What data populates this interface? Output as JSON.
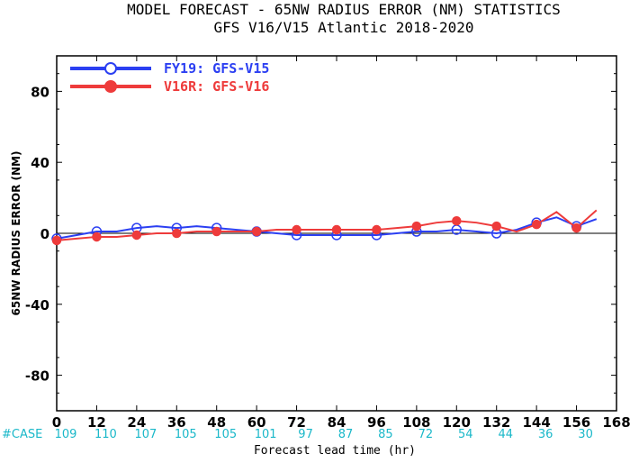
{
  "chart_data": {
    "type": "line",
    "title": "MODEL FORECAST - 65NW RADIUS ERROR (NM) STATISTICS",
    "subtitle": "GFS V16/V15 Atlantic 2018-2020",
    "xlabel": "Forecast lead time (hr)",
    "ylabel": "65NW RADIUS ERROR (NM)",
    "xlim": [
      0,
      168
    ],
    "ylim": [
      -100,
      100
    ],
    "x_ticks": [
      0,
      12,
      24,
      36,
      48,
      60,
      72,
      84,
      96,
      108,
      120,
      132,
      144,
      156,
      168
    ],
    "y_ticks": [
      -80,
      -40,
      0,
      40,
      80
    ],
    "grid": false,
    "legend_position": "top-left",
    "zero_line": true,
    "series": [
      {
        "name": "FY19: GFS-V15",
        "color": "#2b3ff2",
        "marker": "open-circle",
        "x": [
          0,
          6,
          12,
          18,
          24,
          30,
          36,
          42,
          48,
          54,
          60,
          66,
          72,
          78,
          84,
          90,
          96,
          102,
          108,
          114,
          120,
          126,
          132,
          138,
          144,
          150,
          156,
          162
        ],
        "y": [
          -3,
          -1,
          1,
          1,
          3,
          4,
          3,
          4,
          3,
          2,
          1,
          0,
          -1,
          -1,
          -1,
          -1,
          -1,
          0,
          1,
          1,
          2,
          1,
          0,
          2,
          6,
          9,
          4,
          8
        ],
        "marker_x": [
          0,
          12,
          24,
          36,
          48,
          60,
          72,
          84,
          96,
          108,
          120,
          132,
          144,
          156
        ]
      },
      {
        "name": "V16R: GFS-V16",
        "color": "#ee3b3b",
        "marker": "filled-circle",
        "x": [
          0,
          6,
          12,
          18,
          24,
          30,
          36,
          42,
          48,
          54,
          60,
          66,
          72,
          78,
          84,
          90,
          96,
          102,
          108,
          114,
          120,
          126,
          132,
          138,
          144,
          150,
          156,
          162
        ],
        "y": [
          -4,
          -3,
          -2,
          -2,
          -1,
          0,
          0,
          1,
          1,
          1,
          1,
          2,
          2,
          2,
          2,
          2,
          2,
          3,
          4,
          6,
          7,
          6,
          4,
          1,
          5,
          12,
          3,
          13
        ],
        "marker_x": [
          0,
          12,
          24,
          36,
          48,
          60,
          72,
          84,
          96,
          108,
          120,
          132,
          144,
          156
        ]
      }
    ],
    "cases": {
      "label": "#CASE",
      "x": [
        0,
        12,
        24,
        36,
        48,
        60,
        72,
        84,
        96,
        108,
        120,
        132,
        144,
        156
      ],
      "values": [
        "109",
        "110",
        "107",
        "105",
        "105",
        "101",
        "97",
        "87",
        "85",
        "72",
        "54",
        "44",
        "36",
        "30"
      ]
    }
  }
}
